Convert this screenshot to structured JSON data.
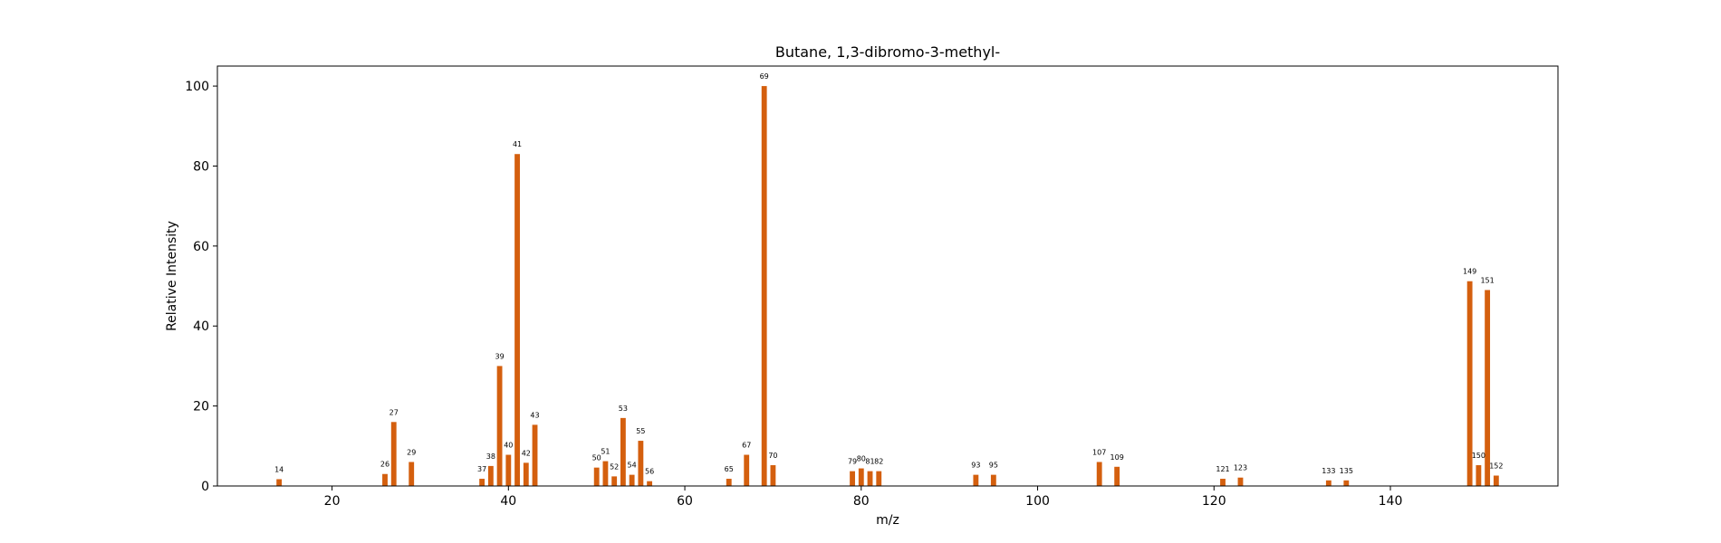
{
  "chart_data": {
    "type": "bar",
    "title": "Butane, 1,3-dibromo-3-methyl-",
    "xlabel": "m/z",
    "ylabel": "Relative Intensity",
    "xlim": [
      7,
      159
    ],
    "ylim": [
      0,
      105
    ],
    "xticks": [
      20,
      40,
      60,
      80,
      100,
      120,
      140
    ],
    "yticks": [
      0,
      20,
      40,
      60,
      80,
      100
    ],
    "grid": false,
    "bar_color": "#d45f0e",
    "points": [
      {
        "x": 14,
        "y": 1.7
      },
      {
        "x": 26,
        "y": 3.0
      },
      {
        "x": 27,
        "y": 16.0
      },
      {
        "x": 29,
        "y": 6.0
      },
      {
        "x": 37,
        "y": 1.8
      },
      {
        "x": 38,
        "y": 5.0
      },
      {
        "x": 39,
        "y": 30.0
      },
      {
        "x": 40,
        "y": 7.8
      },
      {
        "x": 41,
        "y": 83.0
      },
      {
        "x": 42,
        "y": 5.8
      },
      {
        "x": 43,
        "y": 15.3
      },
      {
        "x": 50,
        "y": 4.6
      },
      {
        "x": 51,
        "y": 6.2
      },
      {
        "x": 52,
        "y": 2.4
      },
      {
        "x": 53,
        "y": 17.0
      },
      {
        "x": 54,
        "y": 2.8
      },
      {
        "x": 55,
        "y": 11.3
      },
      {
        "x": 56,
        "y": 1.2
      },
      {
        "x": 65,
        "y": 1.8
      },
      {
        "x": 67,
        "y": 7.8
      },
      {
        "x": 69,
        "y": 100.0
      },
      {
        "x": 70,
        "y": 5.2
      },
      {
        "x": 79,
        "y": 3.7
      },
      {
        "x": 80,
        "y": 4.4
      },
      {
        "x": 81,
        "y": 3.7
      },
      {
        "x": 82,
        "y": 3.7
      },
      {
        "x": 93,
        "y": 2.8
      },
      {
        "x": 95,
        "y": 2.8
      },
      {
        "x": 107,
        "y": 6.0
      },
      {
        "x": 109,
        "y": 4.8
      },
      {
        "x": 121,
        "y": 1.8
      },
      {
        "x": 123,
        "y": 2.1
      },
      {
        "x": 133,
        "y": 1.4
      },
      {
        "x": 135,
        "y": 1.4
      },
      {
        "x": 149,
        "y": 51.2
      },
      {
        "x": 150,
        "y": 5.2
      },
      {
        "x": 151,
        "y": 49.0
      },
      {
        "x": 152,
        "y": 2.6
      }
    ]
  }
}
